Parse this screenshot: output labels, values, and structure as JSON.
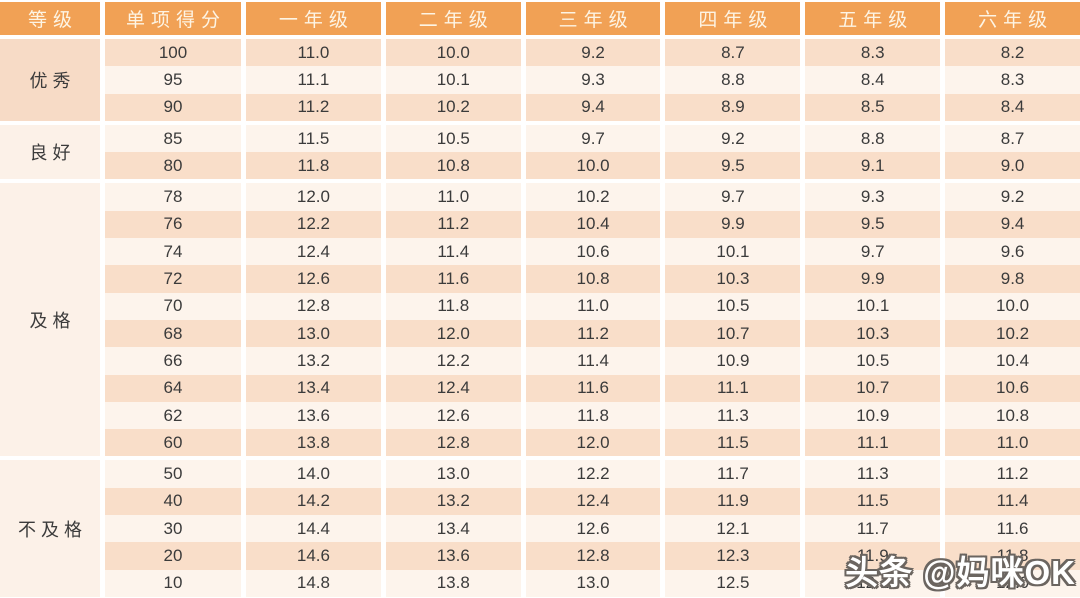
{
  "watermark": "头条 @妈咪OK",
  "colors": {
    "header_bg": "#F1A155",
    "header_text": "#FDF4E4",
    "row_peach": "#F9DEC9",
    "row_cream": "#FDF4EC",
    "group_excellent_bg": "#F7DBC6",
    "group_other_bg": "#FCF1E8",
    "cell_text": "#3B3B3B",
    "watermark_fill": "#FFFFFF",
    "watermark_outline": "#6B6560"
  },
  "chart_data": {
    "type": "table",
    "columns": [
      "等级",
      "单项得分",
      "一年级",
      "二年级",
      "三年级",
      "四年级",
      "五年级",
      "六年级"
    ],
    "groups": [
      {
        "label": "优秀",
        "rows": [
          [
            "100",
            "11.0",
            "10.0",
            "9.2",
            "8.7",
            "8.3",
            "8.2"
          ],
          [
            "95",
            "11.1",
            "10.1",
            "9.3",
            "8.8",
            "8.4",
            "8.3"
          ],
          [
            "90",
            "11.2",
            "10.2",
            "9.4",
            "8.9",
            "8.5",
            "8.4"
          ]
        ]
      },
      {
        "label": "良好",
        "rows": [
          [
            "85",
            "11.5",
            "10.5",
            "9.7",
            "9.2",
            "8.8",
            "8.7"
          ],
          [
            "80",
            "11.8",
            "10.8",
            "10.0",
            "9.5",
            "9.1",
            "9.0"
          ]
        ]
      },
      {
        "label": "及格",
        "rows": [
          [
            "78",
            "12.0",
            "11.0",
            "10.2",
            "9.7",
            "9.3",
            "9.2"
          ],
          [
            "76",
            "12.2",
            "11.2",
            "10.4",
            "9.9",
            "9.5",
            "9.4"
          ],
          [
            "74",
            "12.4",
            "11.4",
            "10.6",
            "10.1",
            "9.7",
            "9.6"
          ],
          [
            "72",
            "12.6",
            "11.6",
            "10.8",
            "10.3",
            "9.9",
            "9.8"
          ],
          [
            "70",
            "12.8",
            "11.8",
            "11.0",
            "10.5",
            "10.1",
            "10.0"
          ],
          [
            "68",
            "13.0",
            "12.0",
            "11.2",
            "10.7",
            "10.3",
            "10.2"
          ],
          [
            "66",
            "13.2",
            "12.2",
            "11.4",
            "10.9",
            "10.5",
            "10.4"
          ],
          [
            "64",
            "13.4",
            "12.4",
            "11.6",
            "11.1",
            "10.7",
            "10.6"
          ],
          [
            "62",
            "13.6",
            "12.6",
            "11.8",
            "11.3",
            "10.9",
            "10.8"
          ],
          [
            "60",
            "13.8",
            "12.8",
            "12.0",
            "11.5",
            "11.1",
            "11.0"
          ]
        ]
      },
      {
        "label": "不及格",
        "rows": [
          [
            "50",
            "14.0",
            "13.0",
            "12.2",
            "11.7",
            "11.3",
            "11.2"
          ],
          [
            "40",
            "14.2",
            "13.2",
            "12.4",
            "11.9",
            "11.5",
            "11.4"
          ],
          [
            "30",
            "14.4",
            "13.4",
            "12.6",
            "12.1",
            "11.7",
            "11.6"
          ],
          [
            "20",
            "14.6",
            "13.6",
            "12.8",
            "12.3",
            "11.9",
            "11.8"
          ],
          [
            "10",
            "14.8",
            "13.8",
            "13.0",
            "12.5",
            "12.1",
            "12.0"
          ]
        ]
      }
    ]
  }
}
